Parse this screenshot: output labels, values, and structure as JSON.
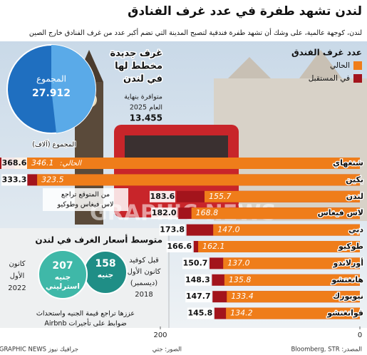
{
  "chart_data": {
    "type": "bar",
    "title": "لندن تشهد طفرة في عدد غرف الفنادق",
    "subtitle": "لندن، كوجهة عالمية، على وشك أن تشهد طفرة فندقية لتصبح المدينة التي تضم أكبر عدد من غرف الفنادق خارج الصين",
    "legend_title": "عدد غرف الفندق",
    "current_prefix": "الحالي:",
    "categories": [
      "شنغهاي",
      "بكين",
      "لندن",
      "لاس فيغاس",
      "دبي",
      "طوكيو",
      "أورلاندو",
      "هانغتشو",
      "نيويورك",
      "قوانغتشو"
    ],
    "totals": [
      368.6,
      333.3,
      183.6,
      182.0,
      173.8,
      166.6,
      150.7,
      148.3,
      147.7,
      145.8
    ],
    "totals_labels": [
      "368.6",
      "333.3",
      "183.6",
      "182.0",
      "173.8",
      "166.6",
      "150.7",
      "148.3",
      "147.7",
      "145.8"
    ],
    "totals_name": "في المستقبل",
    "totals_color": "#a3141c",
    "series": [
      {
        "name": "الحالي",
        "color": "#ef7d1a",
        "values": [
          346.1,
          323.5,
          155.7,
          168.8,
          147.0,
          162.1,
          137.0,
          135.8,
          133.4,
          134.2
        ],
        "value_labels": [
          "346.1",
          "323.5",
          "155.7",
          "168.8",
          "147.0",
          "162.1",
          "137.0",
          "135.8",
          "133.4",
          "134.2"
        ]
      }
    ],
    "xlim": [
      0,
      200
    ],
    "xticks": [
      0,
      200
    ],
    "pie": {
      "total_label": "المجموع",
      "total": 27.912,
      "total_text": "27.912",
      "new": 13.455,
      "new_text": "13.455",
      "unit_label": "المجموع (آلاف)",
      "total_color": "#1f6fc0",
      "new_color": "#5aaae8",
      "new_title": [
        "غرف جديدة",
        "مخطط لها",
        "في لندن"
      ],
      "new_note": [
        "متوافرة بنهاية",
        "العام 2025"
      ]
    },
    "annotation": [
      "من المتوقع تراجع",
      "لاس فيغاس وطوكيو"
    ],
    "prices": {
      "title": "متوسط أسعار الغرف في لندن",
      "now": {
        "value": 207,
        "unit": [
          "جنيه",
          "استرليني"
        ],
        "date": [
          "كانون",
          "الأول",
          "2022"
        ],
        "color": "#3fb8a8"
      },
      "before": {
        "value": 158,
        "unit": [
          "جنيه"
        ],
        "date": [
          "قبل كوفيد",
          "كانون الأول",
          "(ديسمبر)",
          "2018"
        ],
        "color": "#1f8e86"
      },
      "note": [
        "عززها تراجع قيمة الجنيه واستحداث",
        "ضوابط على تأجيرات Airbnb"
      ]
    },
    "source": "المصدر: Bloomberg, STR",
    "photo_credit": "الصور: جتي",
    "credit": "جرافيك نيوز GRAPHIC NEWS",
    "watermark": "GRAPHIC NEWS"
  }
}
